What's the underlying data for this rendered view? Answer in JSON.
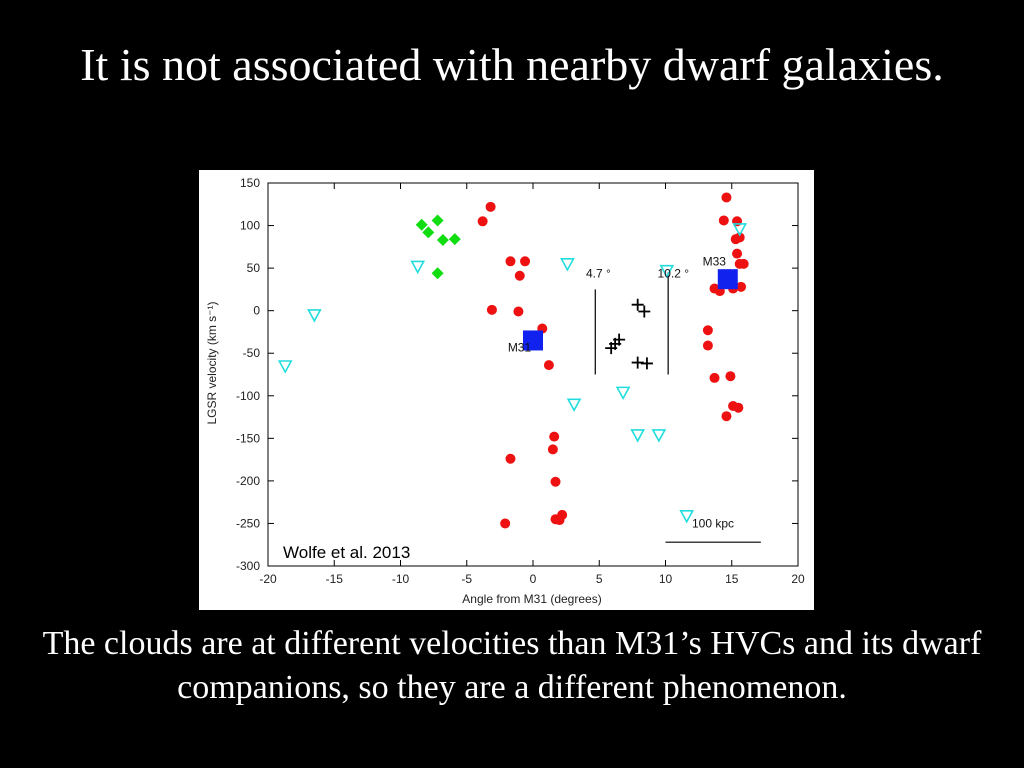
{
  "slide": {
    "title": "It is not associated with nearby dwarf galaxies.",
    "caption": "The clouds are at different velocities than M31’s HVCs and its dwarf companions, so they are a different phenomenon.",
    "background": "#000000",
    "text_color": "#ffffff"
  },
  "chart_data": {
    "type": "scatter",
    "xlabel": "Angle from M31  (degrees)",
    "ylabel": "LGSR velocity  (km s⁻¹)",
    "xlim": [
      -20,
      20
    ],
    "ylim": [
      -300,
      150
    ],
    "xticks": [
      -20,
      -15,
      -10,
      -5,
      0,
      5,
      10,
      15,
      20
    ],
    "yticks": [
      150,
      100,
      50,
      0,
      -50,
      -100,
      -150,
      -200,
      -250,
      -300
    ],
    "grid": false,
    "credit": "Wolfe et al. 2013",
    "series": [
      {
        "marker": "circle",
        "color": "#ee1111",
        "points": [
          [
            -3.2,
            122
          ],
          [
            -3.8,
            105
          ],
          [
            -1.7,
            58
          ],
          [
            -0.6,
            58
          ],
          [
            -1.0,
            41
          ],
          [
            -3.1,
            1
          ],
          [
            -1.1,
            -1
          ],
          [
            0.7,
            -21
          ],
          [
            1.2,
            -64
          ],
          [
            1.6,
            -148
          ],
          [
            1.5,
            -163
          ],
          [
            -1.7,
            -174
          ],
          [
            1.7,
            -201
          ],
          [
            1.7,
            -245
          ],
          [
            2.2,
            -240
          ],
          [
            2.0,
            -246
          ],
          [
            -2.1,
            -250
          ],
          [
            14.6,
            133
          ],
          [
            14.4,
            106
          ],
          [
            15.4,
            105
          ],
          [
            15.6,
            86
          ],
          [
            15.3,
            84
          ],
          [
            15.4,
            67
          ],
          [
            15.6,
            55
          ],
          [
            15.9,
            55
          ],
          [
            14.4,
            40
          ],
          [
            15.1,
            28
          ],
          [
            13.7,
            26
          ],
          [
            14.1,
            23
          ],
          [
            15.7,
            28
          ],
          [
            15.1,
            26
          ],
          [
            13.2,
            -23
          ],
          [
            13.2,
            -41
          ],
          [
            13.7,
            -79
          ],
          [
            14.9,
            -77
          ],
          [
            15.1,
            -112
          ],
          [
            15.5,
            -114
          ],
          [
            14.6,
            -124
          ]
        ]
      },
      {
        "marker": "diamond",
        "color": "#11dd11",
        "points": [
          [
            -8.4,
            101
          ],
          [
            -7.9,
            92
          ],
          [
            -7.2,
            106
          ],
          [
            -6.8,
            83
          ],
          [
            -5.9,
            84
          ],
          [
            -7.2,
            44
          ]
        ]
      },
      {
        "marker": "triangle-down",
        "color": "#22dddd",
        "points": [
          [
            -18.7,
            -65
          ],
          [
            -16.5,
            -5
          ],
          [
            -8.7,
            52
          ],
          [
            2.6,
            55
          ],
          [
            3.1,
            -110
          ],
          [
            6.8,
            -96
          ],
          [
            7.9,
            -146
          ],
          [
            9.5,
            -146
          ],
          [
            10.1,
            47
          ],
          [
            11.6,
            -241
          ],
          [
            15.6,
            96
          ]
        ]
      },
      {
        "marker": "plus",
        "color": "#000000",
        "points": [
          [
            7.9,
            7
          ],
          [
            8.4,
            -1
          ],
          [
            6.5,
            -34
          ],
          [
            6.2,
            -39
          ],
          [
            5.9,
            -44
          ],
          [
            7.9,
            -61
          ],
          [
            8.6,
            -62
          ]
        ]
      },
      {
        "marker": "square",
        "color": "#1122ee",
        "points": [
          [
            0.0,
            -35
          ],
          [
            14.7,
            37
          ]
        ]
      }
    ],
    "annotations": [
      {
        "text": "M31",
        "x": -1.9,
        "y": -48
      },
      {
        "text": "M33",
        "x": 12.8,
        "y": 53
      },
      {
        "text": "4.7 °",
        "x": 4.0,
        "y": 39
      },
      {
        "text": "10.2 °",
        "x": 9.4,
        "y": 39
      },
      {
        "text": "100 kpc",
        "x": 12.0,
        "y": -255
      }
    ],
    "reference_lines": [
      {
        "type": "vertical",
        "x": 4.7,
        "y_from": -75,
        "y_to": 25
      },
      {
        "type": "vertical",
        "x": 10.2,
        "y_from": -75,
        "y_to": 45
      },
      {
        "type": "horizontal",
        "y": -272,
        "x_from": 10.0,
        "x_to": 17.2
      }
    ]
  }
}
